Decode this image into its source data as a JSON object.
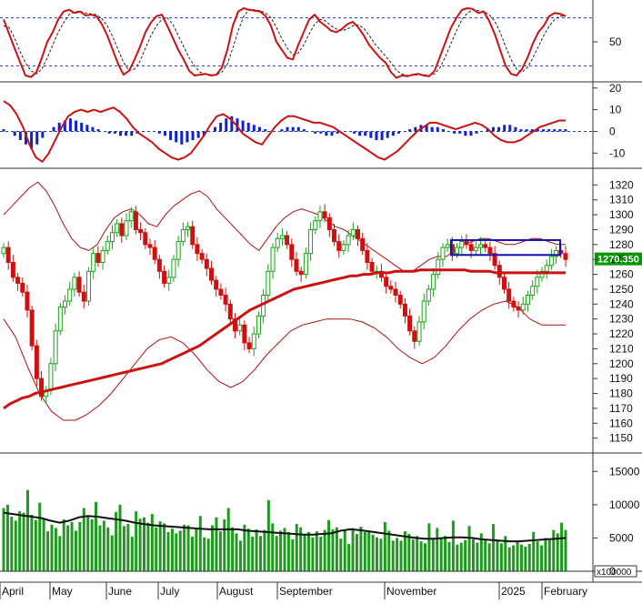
{
  "colors": {
    "up": "#1aa31a",
    "down": "#d01010",
    "volume": "#1f9a1f",
    "stoch_k": "#cc1111",
    "stoch_d": "#222222",
    "macd_hist": "#1122cc",
    "ma_long": "#cc1111",
    "bands": "#b01010",
    "grid": "#1f3f9f",
    "price_tag_bg": "#009900",
    "box": "#1111aa"
  },
  "chart_data": [
    {
      "type": "line",
      "name": "stochastic",
      "yticks": [
        50
      ],
      "ylim": [
        0,
        100
      ],
      "levels": [
        20,
        80
      ],
      "k": [
        78,
        60,
        42,
        25,
        8,
        6,
        12,
        30,
        50,
        62,
        78,
        88,
        90,
        86,
        88,
        83,
        84,
        82,
        72,
        58,
        40,
        22,
        9,
        14,
        28,
        44,
        62,
        74,
        82,
        84,
        70,
        55,
        40,
        28,
        14,
        8,
        9,
        10,
        8,
        9,
        18,
        40,
        70,
        88,
        92,
        90,
        89,
        88,
        82,
        70,
        50,
        40,
        30,
        28,
        46,
        62,
        78,
        84,
        75,
        70,
        64,
        62,
        66,
        72,
        75,
        68,
        58,
        46,
        38,
        30,
        24,
        12,
        5,
        8,
        7,
        9,
        10,
        8,
        7,
        14,
        32,
        50,
        68,
        80,
        90,
        92,
        91,
        86,
        88,
        76,
        60,
        40,
        20,
        10,
        8,
        16,
        30,
        48,
        62,
        70,
        82,
        86,
        85,
        82
      ],
      "d": [
        70,
        68,
        55,
        38,
        24,
        14,
        10,
        16,
        30,
        46,
        62,
        74,
        84,
        88,
        88,
        86,
        85,
        84,
        79,
        70,
        56,
        40,
        24,
        14,
        16,
        26,
        42,
        58,
        70,
        78,
        80,
        72,
        58,
        44,
        30,
        20,
        12,
        10,
        9,
        9,
        12,
        22,
        42,
        64,
        82,
        90,
        90,
        89,
        86,
        80,
        68,
        54,
        42,
        34,
        36,
        46,
        60,
        72,
        78,
        76,
        70,
        66,
        64,
        66,
        70,
        71,
        67,
        58,
        48,
        40,
        32,
        24,
        14,
        10,
        8,
        8,
        9,
        9,
        8,
        10,
        18,
        32,
        48,
        64,
        78,
        86,
        90,
        89,
        88,
        84,
        76,
        62,
        44,
        28,
        16,
        12,
        18,
        30,
        44,
        58,
        70,
        78,
        82,
        82
      ]
    },
    {
      "type": "bar",
      "name": "macd",
      "yticks": [
        20,
        10,
        0,
        -10
      ],
      "ylim": [
        -17,
        22
      ],
      "hist": [
        1,
        0,
        -2,
        -4,
        -6,
        -8,
        -6,
        -3,
        0,
        2,
        4,
        5,
        6,
        5,
        4,
        3,
        2,
        1,
        0,
        -1,
        -1,
        -2,
        -2,
        -2,
        -1,
        0,
        0,
        0,
        -1,
        -2,
        -4,
        -5,
        -6,
        -5,
        -4,
        -3,
        -2,
        0,
        2,
        4,
        6,
        7,
        6,
        5,
        4,
        3,
        2,
        1,
        0,
        0,
        1,
        2,
        2,
        2,
        1,
        0,
        -1,
        -1,
        -2,
        -2,
        -1,
        0,
        0,
        -1,
        -2,
        -2,
        -3,
        -4,
        -4,
        -3,
        -2,
        -1,
        0,
        1,
        2,
        3,
        3,
        2,
        2,
        1,
        0,
        -1,
        -1,
        -2,
        -2,
        -1,
        0,
        1,
        2,
        2,
        3,
        3,
        2,
        1,
        1,
        1,
        1,
        1,
        1,
        1,
        1,
        1
      ],
      "macd": [
        14,
        12,
        8,
        2,
        -6,
        -12,
        -14,
        -10,
        -4,
        2,
        7,
        9,
        10,
        9,
        10,
        9,
        10,
        11,
        9,
        6,
        2,
        -1,
        -3,
        -5,
        -8,
        -10,
        -12,
        -13,
        -12,
        -10,
        -6,
        -2,
        3,
        7,
        8,
        6,
        3,
        -1,
        -3,
        -5,
        -6,
        -2,
        2,
        5,
        7,
        7,
        6,
        5,
        4,
        4,
        3,
        2,
        0,
        -2,
        -4,
        -6,
        -8,
        -10,
        -12,
        -13,
        -11,
        -9,
        -6,
        -3,
        0,
        2,
        4,
        4,
        3,
        2,
        1,
        2,
        3,
        4,
        3,
        1,
        -2,
        -4,
        -5,
        -5,
        -4,
        -2,
        0,
        2,
        3,
        4,
        5,
        5
      ]
    },
    {
      "type": "candlestick",
      "name": "price",
      "yticks": [
        1320,
        1310,
        1300,
        1290,
        1280,
        1270,
        1260,
        1250,
        1240,
        1230,
        1220,
        1210,
        1200,
        1190,
        1180,
        1170,
        1160,
        1150
      ],
      "ylim": [
        1140,
        1330
      ],
      "last_price": "1270.350",
      "close": [
        1278,
        1268,
        1258,
        1254,
        1248,
        1236,
        1212,
        1190,
        1178,
        1182,
        1200,
        1222,
        1238,
        1242,
        1250,
        1258,
        1248,
        1242,
        1262,
        1274,
        1268,
        1276,
        1282,
        1288,
        1294,
        1286,
        1296,
        1302,
        1290,
        1288,
        1280,
        1278,
        1270,
        1262,
        1254,
        1258,
        1270,
        1282,
        1290,
        1292,
        1280,
        1274,
        1270,
        1264,
        1256,
        1250,
        1246,
        1240,
        1230,
        1222,
        1226,
        1214,
        1210,
        1220,
        1232,
        1246,
        1262,
        1278,
        1284,
        1286,
        1280,
        1270,
        1262,
        1260,
        1274,
        1290,
        1296,
        1302,
        1298,
        1290,
        1282,
        1276,
        1280,
        1286,
        1290,
        1284,
        1276,
        1268,
        1262,
        1262,
        1258,
        1252,
        1250,
        1246,
        1240,
        1232,
        1222,
        1215,
        1228,
        1242,
        1250,
        1260,
        1270,
        1278,
        1280,
        1274,
        1278,
        1282,
        1280,
        1276,
        1278,
        1280,
        1278,
        1274,
        1266,
        1258,
        1250,
        1242,
        1238,
        1236,
        1240,
        1246,
        1252,
        1258,
        1262,
        1266,
        1272,
        1276,
        1274,
        1270
      ],
      "ma_long": [
        1170,
        1173,
        1175,
        1177,
        1178,
        1180,
        1181,
        1182,
        1183,
        1184,
        1185,
        1186,
        1187,
        1188,
        1189,
        1190,
        1191,
        1192,
        1193,
        1194,
        1195,
        1196,
        1197,
        1198,
        1199,
        1200,
        1202,
        1204,
        1206,
        1208,
        1210,
        1212,
        1215,
        1218,
        1221,
        1224,
        1227,
        1230,
        1233,
        1236,
        1238,
        1240,
        1242,
        1244,
        1246,
        1248,
        1250,
        1251,
        1252,
        1253,
        1254,
        1255,
        1256,
        1257,
        1258,
        1259,
        1259,
        1260,
        1260,
        1261,
        1261,
        1261,
        1262,
        1262,
        1262,
        1262,
        1263,
        1263,
        1263,
        1263,
        1263,
        1263,
        1263,
        1263,
        1262,
        1262,
        1262,
        1262,
        1261,
        1261,
        1261,
        1261,
        1261,
        1261,
        1261,
        1261,
        1261,
        1261,
        1261,
        1261
      ],
      "band_upper": [
        1300,
        1306,
        1312,
        1318,
        1322,
        1316,
        1306,
        1294,
        1284,
        1278,
        1276,
        1280,
        1290,
        1298,
        1302,
        1304,
        1300,
        1294,
        1292,
        1300,
        1306,
        1310,
        1314,
        1316,
        1312,
        1304,
        1298,
        1292,
        1286,
        1280,
        1276,
        1284,
        1292,
        1298,
        1302,
        1304,
        1302,
        1300,
        1296,
        1292,
        1290,
        1286,
        1282,
        1278,
        1274,
        1270,
        1266,
        1262,
        1262,
        1266,
        1270,
        1272,
        1272,
        1276,
        1280,
        1282,
        1284,
        1284,
        1282,
        1280,
        1280,
        1282,
        1284,
        1284,
        1282,
        1280,
        1280
      ],
      "band_lower": [
        1230,
        1218,
        1198,
        1180,
        1168,
        1162,
        1162,
        1166,
        1172,
        1180,
        1190,
        1200,
        1210,
        1216,
        1218,
        1214,
        1206,
        1196,
        1188,
        1184,
        1188,
        1196,
        1206,
        1214,
        1222,
        1226,
        1228,
        1230,
        1230,
        1230,
        1228,
        1224,
        1218,
        1210,
        1204,
        1200,
        1204,
        1212,
        1222,
        1230,
        1236,
        1240,
        1242,
        1238,
        1230,
        1226,
        1226,
        1226
      ],
      "annotation_box": {
        "from": 1283,
        "to": 1273
      }
    },
    {
      "type": "bar",
      "name": "volume",
      "yticks": [
        15000,
        10000,
        5000,
        0
      ],
      "ylim": [
        0,
        17500
      ],
      "unit": "x100000",
      "values": [
        9500,
        10000,
        8200,
        7600,
        9000,
        8800,
        12200,
        8500,
        7700,
        10300,
        8000,
        6000,
        7000,
        6500,
        5300,
        7800,
        6900,
        7400,
        6100,
        7400,
        9500,
        8200,
        7800,
        10400,
        6900,
        7600,
        6600,
        5400,
        8900,
        10000,
        6800,
        7100,
        5200,
        9000,
        7900,
        8100,
        7300,
        8600,
        6600,
        7500,
        7200,
        5900,
        6400,
        5700,
        6100,
        7000,
        6900,
        5200,
        6500,
        8300,
        5100,
        4900,
        6900,
        8100,
        6000,
        7800,
        9500,
        6600,
        5700,
        4600,
        7000,
        6400,
        5200,
        6300,
        5300,
        6200,
        10700,
        7200,
        5300,
        6100,
        6500,
        5900,
        4800,
        7100,
        6600,
        5600,
        5900,
        5100,
        6000,
        5200,
        6200,
        7700,
        6300,
        6600,
        4900,
        6100,
        4100,
        6500,
        5600,
        6700,
        5900,
        5900,
        5500,
        5100,
        4900,
        7400,
        6100,
        4600,
        5000,
        4600,
        6000,
        5600,
        4800,
        5300,
        4500,
        4200,
        7200,
        5000,
        6500,
        4900,
        5300,
        4400,
        7600,
        4000,
        4300,
        4700,
        6800,
        4800,
        4300,
        5700,
        4700,
        4200,
        7100,
        4700,
        4200,
        5300,
        3600,
        3900,
        4400,
        4000,
        3700,
        4100,
        5900,
        4500,
        3900,
        5000,
        4700,
        6200,
        5700,
        7300,
        6200
      ],
      "avg": [
        8800,
        8600,
        8400,
        8200,
        8000,
        7600,
        7300,
        7600,
        8100,
        8300,
        8200,
        8000,
        7800,
        7600,
        7300,
        7100,
        6900,
        6800,
        6700,
        6600,
        6500,
        6400,
        6300,
        6300,
        6300,
        6300,
        6100,
        6000,
        5900,
        5800,
        5700,
        5600,
        5500,
        5500,
        5600,
        5700,
        6100,
        6300,
        6200,
        6000,
        5800,
        5600,
        5400,
        5200,
        5000,
        4900,
        4900,
        5000,
        5100,
        5100,
        5000,
        4800,
        4700,
        4600,
        4500,
        4500,
        4600,
        4700,
        4800,
        4900,
        5000
      ]
    }
  ],
  "x_axis": {
    "labels": [
      "April",
      "May",
      "June",
      "July",
      "August",
      "September",
      "November",
      "2025",
      "February"
    ]
  }
}
